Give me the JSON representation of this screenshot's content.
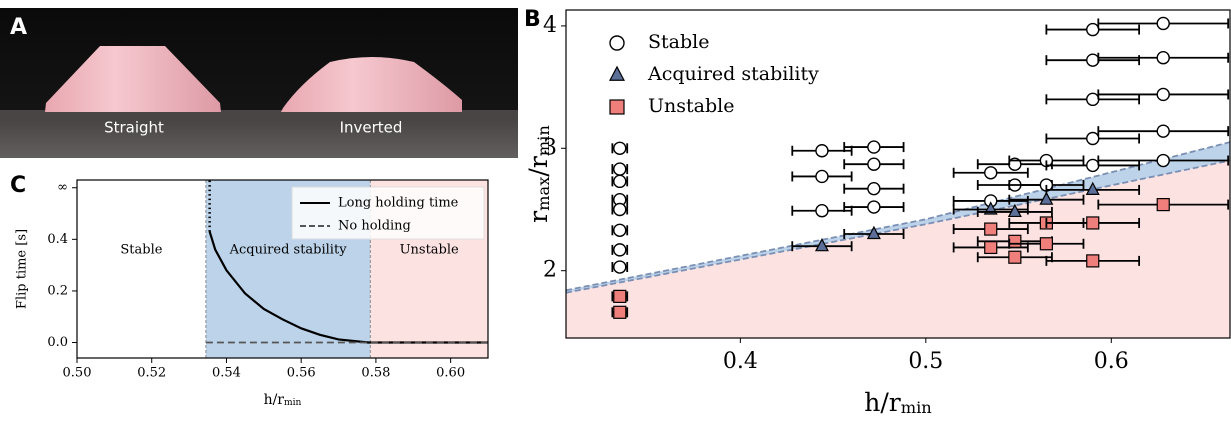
{
  "photo": {
    "panel_label": "A",
    "captions": [
      "Straight",
      "Inverted"
    ]
  },
  "chart_data": [
    {
      "type": "region-line",
      "panel_label": "C",
      "xlabel": [
        "h/r",
        "min"
      ],
      "ylabel": "Flip time [s]",
      "xlim": [
        0.5,
        0.61
      ],
      "ylim": [
        -0.06,
        0.63
      ],
      "xticks": [
        {
          "value": 0.5,
          "label": "0.50"
        },
        {
          "value": 0.52,
          "label": "0.52"
        },
        {
          "value": 0.54,
          "label": "0.54"
        },
        {
          "value": 0.56,
          "label": "0.56"
        },
        {
          "value": 0.58,
          "label": "0.58"
        },
        {
          "value": 0.6,
          "label": "0.60"
        }
      ],
      "yticks": [
        {
          "value": 0,
          "label": "0.0"
        },
        {
          "value": 0.2,
          "label": "0.2"
        },
        {
          "value": 0.4,
          "label": "0.4"
        },
        {
          "value": 0.6,
          "label": "∞"
        }
      ],
      "regions": [
        {
          "name": "Stable",
          "x": [
            0.5,
            0.5345
          ],
          "color": "#ffffff"
        },
        {
          "name": "Acquired stability",
          "x": [
            0.5345,
            0.5785
          ],
          "color": "#bcd3ea"
        },
        {
          "name": "Unstable",
          "x": [
            0.5785,
            0.61
          ],
          "color": "#fde2e2"
        }
      ],
      "series": [
        {
          "name": "Long holding time",
          "color": "#000000",
          "dash": "solid",
          "x": [
            0.5355,
            0.537,
            0.54,
            0.545,
            0.55,
            0.555,
            0.56,
            0.565,
            0.57,
            0.578,
            0.61
          ],
          "values": [
            0.43,
            0.36,
            0.28,
            0.19,
            0.13,
            0.09,
            0.055,
            0.03,
            0.012,
            0.0,
            0.0
          ]
        },
        {
          "name": "No holding",
          "color": "#555555",
          "dash": "dashed",
          "x": [
            0.5345,
            0.61
          ],
          "values": [
            0.0,
            0.0
          ]
        }
      ]
    },
    {
      "type": "scatter",
      "panel_label": "B",
      "xlabel": [
        "h/r",
        "min"
      ],
      "ylabel": [
        "r",
        "max",
        "/r",
        "min"
      ],
      "xlim": [
        0.306,
        0.664
      ],
      "ylim": [
        1.45,
        4.13
      ],
      "xticks": [
        0.4,
        0.5,
        0.6
      ],
      "yticks": [
        2,
        3,
        4
      ],
      "boundary": {
        "x": [
          0.306,
          0.5,
          0.664
        ],
        "upper": [
          1.84,
          2.42,
          3.05
        ],
        "lower": [
          1.82,
          2.38,
          2.9
        ],
        "band_color": "#bcd3ea",
        "below_color": "#fde2e2"
      },
      "series": [
        {
          "name": "Stable",
          "marker": "circle",
          "color": "#ffffff",
          "x": [
            0.335,
            0.335,
            0.335,
            0.335,
            0.335,
            0.335,
            0.335,
            0.335,
            0.444,
            0.444,
            0.444,
            0.472,
            0.472,
            0.472,
            0.472,
            0.535,
            0.535,
            0.548,
            0.548,
            0.565,
            0.565,
            0.59,
            0.59,
            0.59,
            0.59,
            0.59,
            0.628,
            0.628,
            0.628,
            0.628,
            0.628
          ],
          "values": [
            3.0,
            2.83,
            2.73,
            2.58,
            2.5,
            2.33,
            2.17,
            2.03,
            2.98,
            2.77,
            2.49,
            3.01,
            2.87,
            2.67,
            2.52,
            2.8,
            2.57,
            2.87,
            2.7,
            2.9,
            2.7,
            3.97,
            3.72,
            3.4,
            3.08,
            2.86,
            4.02,
            3.74,
            3.44,
            3.14,
            2.9
          ],
          "xerr": [
            0.004,
            0.004,
            0.004,
            0.004,
            0.004,
            0.004,
            0.004,
            0.004,
            0.016,
            0.016,
            0.016,
            0.016,
            0.016,
            0.016,
            0.016,
            0.02,
            0.02,
            0.02,
            0.02,
            0.02,
            0.02,
            0.025,
            0.025,
            0.025,
            0.025,
            0.025,
            0.035,
            0.035,
            0.035,
            0.035,
            0.035
          ]
        },
        {
          "name": "Acquired stability",
          "marker": "triangle",
          "color": "#5b6f99",
          "x": [
            0.444,
            0.472,
            0.535,
            0.548,
            0.565,
            0.59
          ],
          "values": [
            2.2,
            2.3,
            2.5,
            2.48,
            2.58,
            2.66
          ],
          "xerr": [
            0.016,
            0.016,
            0.02,
            0.02,
            0.02,
            0.025
          ]
        },
        {
          "name": "Unstable",
          "marker": "square",
          "color": "#ef7f7a",
          "x": [
            0.335,
            0.335,
            0.535,
            0.535,
            0.548,
            0.548,
            0.565,
            0.565,
            0.59,
            0.59,
            0.628
          ],
          "values": [
            1.79,
            1.66,
            2.34,
            2.19,
            2.24,
            2.11,
            2.39,
            2.22,
            2.39,
            2.08,
            2.54
          ],
          "xerr": [
            0.004,
            0.004,
            0.02,
            0.02,
            0.02,
            0.02,
            0.02,
            0.02,
            0.025,
            0.025,
            0.035
          ]
        }
      ]
    }
  ]
}
